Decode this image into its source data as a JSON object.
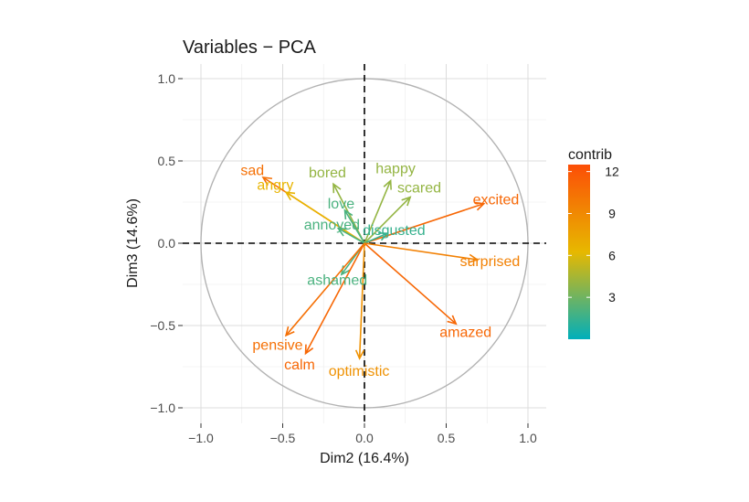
{
  "chart_data": {
    "type": "scatter",
    "subtype": "pca-correlation-circle",
    "title": "Variables − PCA",
    "xlabel": "Dim2 (16.4%)",
    "ylabel": "Dim3 (14.6%)",
    "xlim": [
      -1.1,
      1.1
    ],
    "ylim": [
      -1.1,
      1.1
    ],
    "xticks": [
      -1.0,
      -0.5,
      0.0,
      0.5,
      1.0
    ],
    "yticks": [
      -1.0,
      -0.5,
      0.0,
      0.5,
      1.0
    ],
    "xtick_labels": [
      "−1.0",
      "−0.5",
      "0.0",
      "0.5",
      "1.0"
    ],
    "ytick_labels": [
      "−1.0",
      "−0.5",
      "0.0",
      "0.5",
      "1.0"
    ],
    "grid": true,
    "unit_circle": true,
    "legend": {
      "title": "contrib",
      "placement": "right",
      "min": 0,
      "max": 12.5,
      "ticks": [
        3,
        6,
        9,
        12
      ],
      "tick_labels": [
        "3",
        "6",
        "9",
        "12"
      ],
      "colors": [
        "#00AFBB",
        "#E7B800",
        "#FC4E07"
      ]
    },
    "variables": [
      {
        "name": "sad",
        "x": -0.62,
        "y": 0.4,
        "contrib": 10.5
      },
      {
        "name": "angry",
        "x": -0.48,
        "y": 0.31,
        "contrib": 6.5
      },
      {
        "name": "bored",
        "x": -0.19,
        "y": 0.36,
        "contrib": 4.0
      },
      {
        "name": "happy",
        "x": 0.16,
        "y": 0.38,
        "contrib": 4.0
      },
      {
        "name": "love",
        "x": -0.12,
        "y": 0.2,
        "contrib": 2.0
      },
      {
        "name": "scared",
        "x": 0.28,
        "y": 0.28,
        "contrib": 4.0
      },
      {
        "name": "excited",
        "x": 0.73,
        "y": 0.24,
        "contrib": 11.0
      },
      {
        "name": "annoyed",
        "x": -0.16,
        "y": 0.09,
        "contrib": 2.0
      },
      {
        "name": "disgusted",
        "x": 0.14,
        "y": 0.06,
        "contrib": 1.5
      },
      {
        "name": "surprised",
        "x": 0.69,
        "y": -0.1,
        "contrib": 9.5
      },
      {
        "name": "ashamed",
        "x": -0.14,
        "y": -0.19,
        "contrib": 2.0
      },
      {
        "name": "pensive",
        "x": -0.48,
        "y": -0.56,
        "contrib": 10.5
      },
      {
        "name": "amazed",
        "x": 0.56,
        "y": -0.49,
        "contrib": 11.0
      },
      {
        "name": "calm",
        "x": -0.36,
        "y": -0.67,
        "contrib": 11.0
      },
      {
        "name": "optimistic",
        "x": -0.03,
        "y": -0.7,
        "contrib": 8.5
      }
    ]
  }
}
